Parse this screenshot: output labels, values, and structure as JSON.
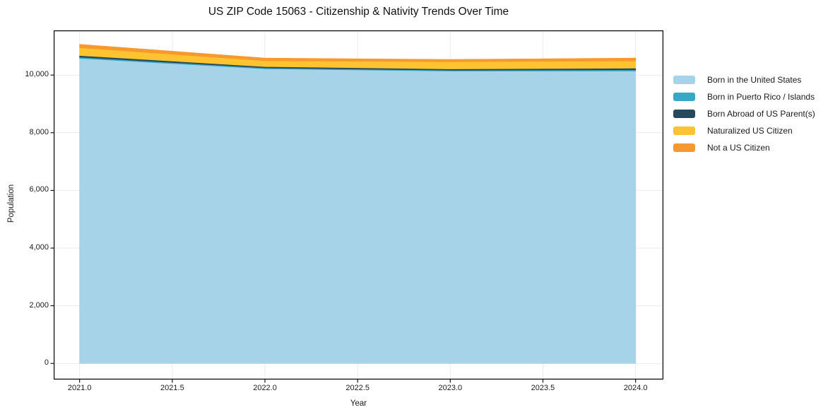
{
  "title": "US ZIP Code 15063 - Citizenship & Nativity Trends Over Time",
  "chart_data": {
    "type": "area",
    "stacked": true,
    "title": "US ZIP Code 15063 - Citizenship & Nativity Trends Over Time",
    "xlabel": "Year",
    "ylabel": "Population",
    "x": [
      2021,
      2022,
      2023,
      2024
    ],
    "series": [
      {
        "name": "Born in the United States",
        "color": "#a7d3e8",
        "values": [
          10580,
          10220,
          10140,
          10140
        ]
      },
      {
        "name": "Born in Puerto Rico / Islands",
        "color": "#39a8c4",
        "values": [
          40,
          30,
          30,
          45
        ]
      },
      {
        "name": "Born Abroad of US Parent(s)",
        "color": "#264a5c",
        "values": [
          60,
          45,
          45,
          55
        ]
      },
      {
        "name": "Naturalized US Citizen",
        "color": "#fdc330",
        "values": [
          270,
          200,
          250,
          250
        ]
      },
      {
        "name": "Not a US Citizen",
        "color": "#f8992d",
        "values": [
          115,
          95,
          75,
          100
        ]
      }
    ],
    "totals": [
      11065,
      10590,
      10540,
      10590
    ],
    "xlim": [
      2020.86,
      2024.15
    ],
    "ylim": [
      -560,
      11550
    ],
    "xticks": {
      "values": [
        2021.0,
        2021.5,
        2022.0,
        2022.5,
        2023.0,
        2023.5,
        2024.0
      ],
      "labels": [
        "2021.0",
        "2021.5",
        "2022.0",
        "2022.5",
        "2023.0",
        "2023.5",
        "2024.0"
      ]
    },
    "yticks": {
      "values": [
        0,
        2000,
        4000,
        6000,
        8000,
        10000
      ],
      "labels": [
        "0",
        "2,000",
        "4,000",
        "6,000",
        "8,000",
        "10,000"
      ]
    },
    "grid": true,
    "legend_position": "right of plot, frameless"
  },
  "colors": {
    "grid": "#ebebeb",
    "spine": "#000000",
    "tick": "#000000",
    "background": "#ffffff",
    "text": "#1a1a1a"
  }
}
